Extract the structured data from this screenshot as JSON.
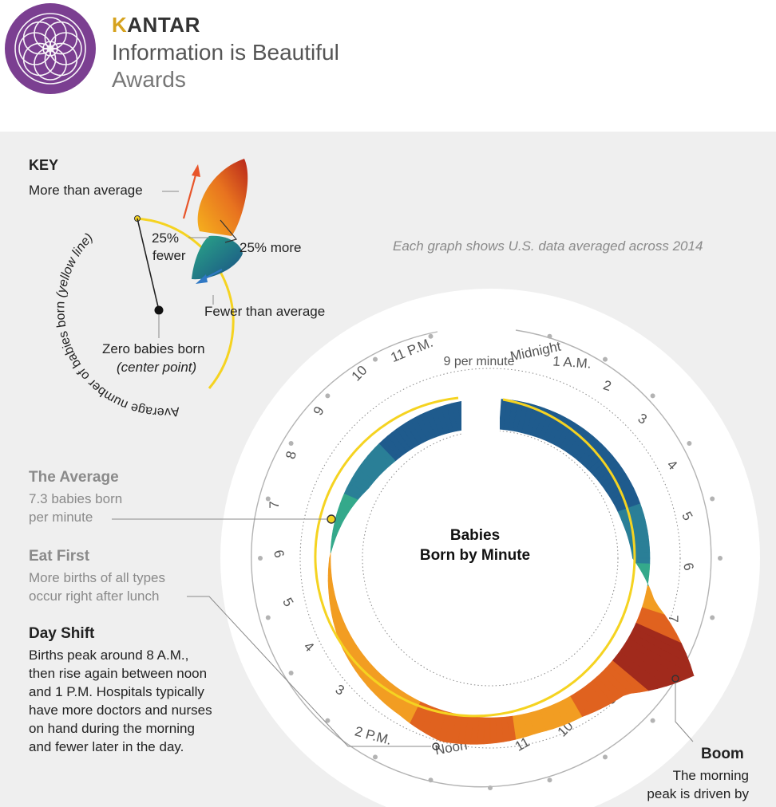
{
  "header": {
    "brand_prefix": "K",
    "brand_rest": "ANTAR",
    "line2": "Information is Beautiful",
    "line3": "Awards"
  },
  "key": {
    "title": "KEY",
    "more_than_average": "More than average",
    "pct_fewer_1": "25%",
    "pct_fewer_2": "fewer",
    "pct_more": "25% more",
    "fewer_than_average": "Fewer than average",
    "zero_babies_1": "Zero babies born",
    "zero_babies_2": "(center point)",
    "arc_label_1": "Average number of babies born ",
    "arc_label_2": "(yellow line)"
  },
  "note": "Each graph shows U.S. data averaged across 2014",
  "annotations": {
    "average_title": "The Average",
    "average_l1": "7.3 babies born",
    "average_l2": "per minute",
    "eat_title": "Eat First",
    "eat_l1": "More births of all types",
    "eat_l2": "occur right after lunch",
    "day_title": "Day Shift",
    "day_l1": "Births peak around 8 A.M.,",
    "day_l2": "then rise again between noon",
    "day_l3": "and 1 P.M. Hospitals typically",
    "day_l4": "have more doctors and nurses",
    "day_l5": "on hand during the morning",
    "day_l6": "and fewer later in the day.",
    "boom_title": "Boom",
    "boom_l1": "The morning",
    "boom_l2": "peak is driven by"
  },
  "chart_data": {
    "type": "radial area",
    "title_line1": "Babies",
    "title_line2": "Born by Minute",
    "average_per_minute": 7.3,
    "inner_ring_label": "6",
    "outer_ring_label": "9 per minute",
    "hour_labels": [
      "Midnight",
      "1 A.M.",
      "2",
      "3",
      "4",
      "5",
      "6",
      "7",
      "8",
      "9",
      "10",
      "11",
      "Noon",
      "2 P.M.",
      "3",
      "4",
      "5",
      "6",
      "7",
      "8",
      "9",
      "10",
      "11 P.M."
    ],
    "hours": [
      0,
      1,
      2,
      3,
      4,
      5,
      6,
      7,
      8,
      9,
      10,
      11,
      12,
      13,
      14,
      15,
      16,
      17,
      18,
      19,
      20,
      21,
      22,
      23
    ],
    "values_per_minute": [
      5.9,
      5.9,
      5.95,
      6.0,
      6.1,
      6.25,
      6.5,
      7.8,
      10.8,
      8.8,
      8.4,
      8.3,
      8.5,
      8.7,
      8.3,
      8.1,
      7.9,
      7.6,
      7.35,
      6.9,
      6.4,
      6.2,
      6.1,
      6.0
    ],
    "colors": {
      "above_average": "#e8731f",
      "peak": "#8a1a16",
      "below_average": "#1f5f8b",
      "near_average": "#3aab8c",
      "average_line": "#f5d321"
    }
  }
}
